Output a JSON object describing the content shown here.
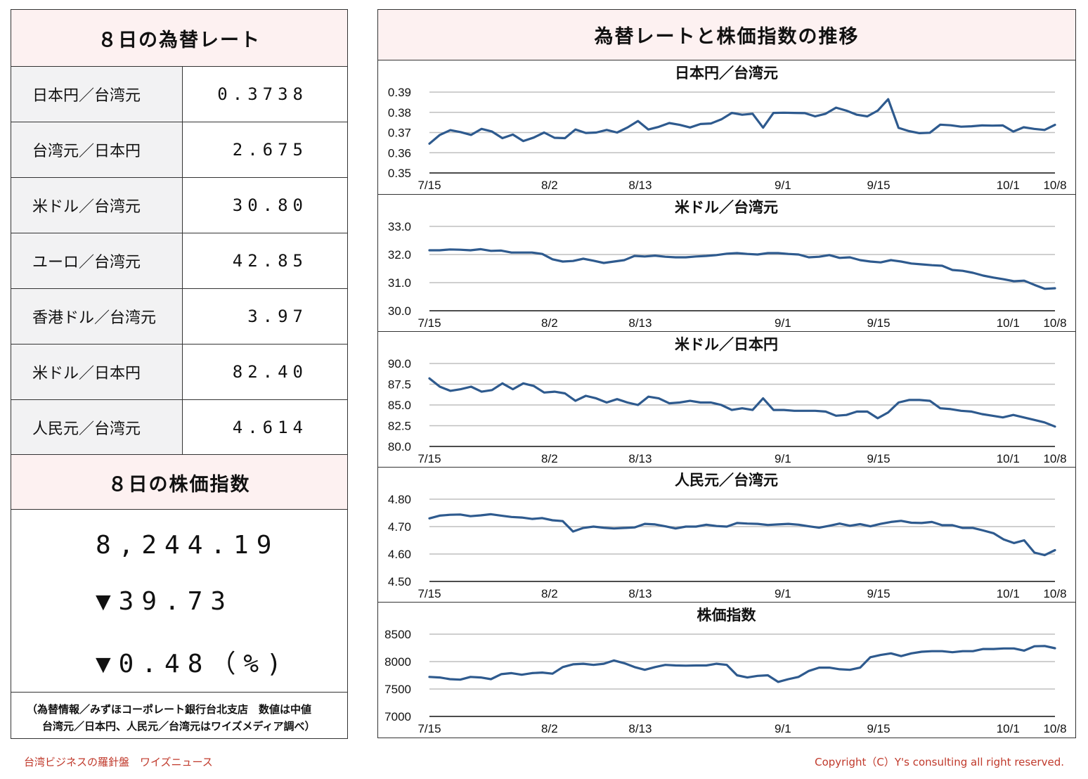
{
  "left": {
    "rates_title": "８日の為替レート",
    "rates": [
      {
        "name": "日本円／台湾元",
        "value": "0.3738"
      },
      {
        "name": "台湾元／日本円",
        "value": "2.675"
      },
      {
        "name": "米ドル／台湾元",
        "value": "30.80"
      },
      {
        "name": "ユーロ／台湾元",
        "value": "42.85"
      },
      {
        "name": "香港ドル／台湾元",
        "value": "3.97"
      },
      {
        "name": "米ドル／日本円",
        "value": "82.40"
      },
      {
        "name": "人民元／台湾元",
        "value": "4.614"
      }
    ],
    "stock_title": "８日の株価指数",
    "stock_value": "8,244.19",
    "stock_change": "▼39.73",
    "stock_change_pct": "▼0.48（%)",
    "source_line1": "（為替情報／みずほコーポレート銀行台北支店　数値は中値",
    "source_line2": "台湾元／日本円、人民元／台湾元はワイズメディア調べ）"
  },
  "right": {
    "title": "為替レートと株価指数の推移"
  },
  "footer": {
    "left": "台湾ビジネスの羅針盤　ワイズニュース",
    "right": "Copyright（C）Y's consulting all right reserved."
  },
  "colors": {
    "line": "#2e5a8e",
    "grid": "#bfbfbf",
    "header_bg": "#fdf1f1",
    "footer_text": "#c0392b"
  },
  "chart_data": [
    {
      "type": "line",
      "title": "日本円／台湾元",
      "ylim": [
        0.35,
        0.39
      ],
      "yticks": [
        "0.39",
        "0.38",
        "0.37",
        "0.36",
        "0.35"
      ],
      "x_tick_labels": [
        "7/15",
        "8/2",
        "8/13",
        "9/1",
        "9/15",
        "10/1",
        "10/8"
      ],
      "values": [
        0.3645,
        0.3688,
        0.3712,
        0.3702,
        0.3688,
        0.3718,
        0.3705,
        0.3672,
        0.369,
        0.3658,
        0.3675,
        0.37,
        0.3674,
        0.3672,
        0.3715,
        0.3698,
        0.37,
        0.3713,
        0.37,
        0.3725,
        0.3757,
        0.3715,
        0.3728,
        0.3747,
        0.3738,
        0.3725,
        0.3742,
        0.3745,
        0.3765,
        0.3797,
        0.3788,
        0.3793,
        0.3724,
        0.3797,
        0.3798,
        0.3797,
        0.3796,
        0.378,
        0.3793,
        0.3823,
        0.3808,
        0.3788,
        0.378,
        0.3808,
        0.3865,
        0.3723,
        0.3707,
        0.3697,
        0.3699,
        0.3739,
        0.3736,
        0.3729,
        0.3731,
        0.3735,
        0.3734,
        0.3735,
        0.3705,
        0.3726,
        0.3718,
        0.3713,
        0.3738
      ]
    },
    {
      "type": "line",
      "title": "米ドル／台湾元",
      "ylim": [
        30.0,
        33.0
      ],
      "yticks": [
        "33.0",
        "32.0",
        "31.0",
        "30.0"
      ],
      "x_tick_labels": [
        "7/15",
        "8/2",
        "8/13",
        "9/1",
        "9/15",
        "10/1",
        "10/8"
      ],
      "values": [
        32.15,
        32.15,
        32.18,
        32.17,
        32.15,
        32.19,
        32.13,
        32.14,
        32.07,
        32.07,
        32.07,
        32.02,
        31.83,
        31.75,
        31.77,
        31.85,
        31.78,
        31.7,
        31.75,
        31.8,
        31.95,
        31.93,
        31.96,
        31.92,
        31.9,
        31.9,
        31.93,
        31.95,
        31.98,
        32.03,
        32.05,
        32.02,
        32.0,
        32.05,
        32.05,
        32.02,
        32.0,
        31.9,
        31.92,
        31.98,
        31.88,
        31.9,
        31.8,
        31.75,
        31.72,
        31.8,
        31.75,
        31.68,
        31.65,
        31.62,
        31.6,
        31.45,
        31.42,
        31.35,
        31.25,
        31.18,
        31.12,
        31.05,
        31.07,
        30.92,
        30.78,
        30.8
      ]
    },
    {
      "type": "line",
      "title": "米ドル／日本円",
      "ylim": [
        80.0,
        90.0
      ],
      "yticks": [
        "90.0",
        "87.5",
        "85.0",
        "82.5",
        "80.0"
      ],
      "x_tick_labels": [
        "7/15",
        "8/2",
        "8/13",
        "9/1",
        "9/15",
        "10/1",
        "10/8"
      ],
      "values": [
        88.2,
        87.2,
        86.7,
        86.9,
        87.2,
        86.6,
        86.8,
        87.6,
        86.9,
        87.6,
        87.3,
        86.5,
        86.6,
        86.4,
        85.5,
        86.1,
        85.8,
        85.3,
        85.7,
        85.3,
        85.0,
        86.0,
        85.8,
        85.2,
        85.3,
        85.5,
        85.3,
        85.3,
        85.0,
        84.4,
        84.6,
        84.4,
        85.8,
        84.4,
        84.4,
        84.3,
        84.3,
        84.3,
        84.2,
        83.7,
        83.8,
        84.2,
        84.2,
        83.4,
        84.1,
        85.3,
        85.6,
        85.6,
        85.5,
        84.6,
        84.5,
        84.3,
        84.2,
        83.9,
        83.7,
        83.5,
        83.8,
        83.5,
        83.2,
        82.9,
        82.4
      ]
    },
    {
      "type": "line",
      "title": "人民元／台湾元",
      "ylim": [
        4.5,
        4.8
      ],
      "yticks": [
        "4.80",
        "4.70",
        "4.60",
        "4.50"
      ],
      "x_tick_labels": [
        "7/15",
        "8/2",
        "8/13",
        "9/1",
        "9/15",
        "10/1",
        "10/8"
      ],
      "values": [
        4.73,
        4.74,
        4.743,
        4.744,
        4.738,
        4.741,
        4.745,
        4.74,
        4.735,
        4.733,
        4.728,
        4.731,
        4.723,
        4.72,
        4.682,
        4.695,
        4.7,
        4.696,
        4.693,
        4.695,
        4.697,
        4.71,
        4.708,
        4.701,
        4.693,
        4.7,
        4.7,
        4.707,
        4.702,
        4.7,
        4.713,
        4.711,
        4.71,
        4.706,
        4.708,
        4.71,
        4.707,
        4.701,
        4.696,
        4.703,
        4.711,
        4.703,
        4.709,
        4.701,
        4.71,
        4.717,
        4.721,
        4.714,
        4.713,
        4.717,
        4.705,
        4.705,
        4.695,
        4.695,
        4.686,
        4.676,
        4.653,
        4.64,
        4.65,
        4.605,
        4.596,
        4.614
      ]
    },
    {
      "type": "line",
      "title": "株価指数",
      "ylim": [
        7000,
        8500
      ],
      "yticks": [
        "8500",
        "8000",
        "7500",
        "7000"
      ],
      "x_tick_labels": [
        "7/15",
        "8/2",
        "8/13",
        "9/1",
        "9/15",
        "10/1",
        "10/8"
      ],
      "values": [
        7720,
        7710,
        7680,
        7670,
        7720,
        7710,
        7680,
        7770,
        7790,
        7760,
        7790,
        7800,
        7780,
        7900,
        7950,
        7960,
        7940,
        7960,
        8020,
        7970,
        7900,
        7850,
        7900,
        7940,
        7930,
        7925,
        7930,
        7930,
        7960,
        7940,
        7750,
        7710,
        7740,
        7750,
        7630,
        7680,
        7720,
        7830,
        7890,
        7890,
        7860,
        7850,
        7890,
        8080,
        8120,
        8150,
        8100,
        8150,
        8180,
        8190,
        8190,
        8170,
        8190,
        8190,
        8230,
        8230,
        8240,
        8240,
        8200,
        8280,
        8285,
        8244
      ]
    }
  ]
}
